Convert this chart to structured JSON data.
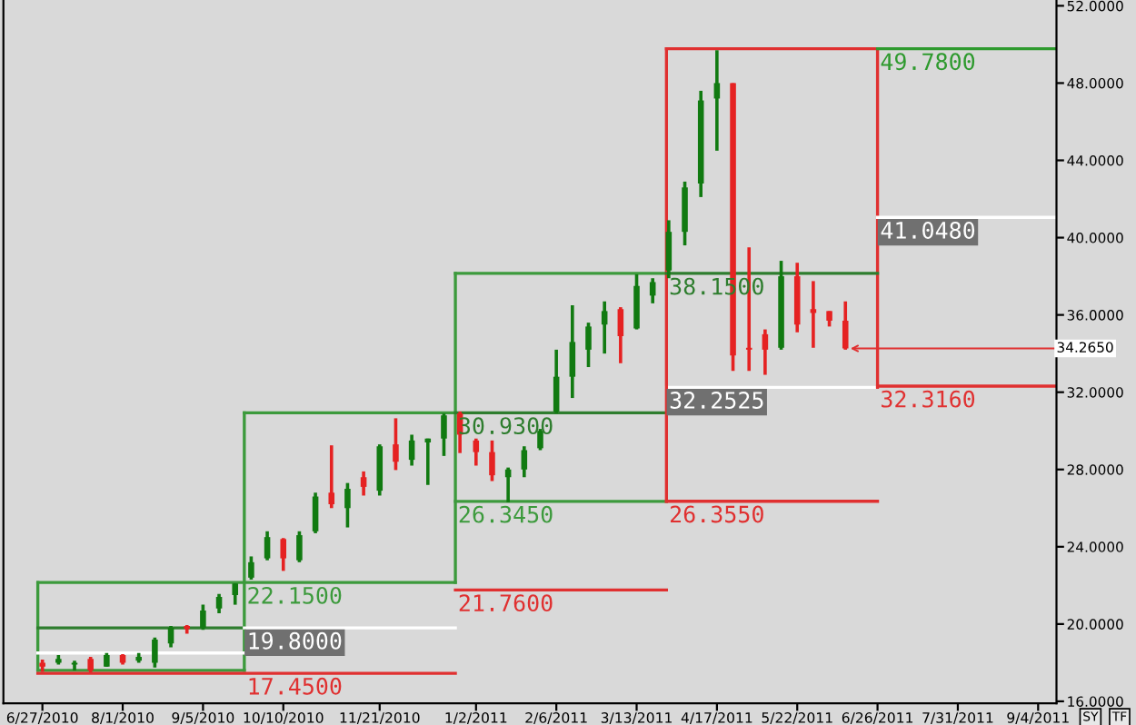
{
  "chart_data": {
    "type": "candlestick",
    "x": [
      "2010-06-27",
      "2010-07-04",
      "2010-07-11",
      "2010-07-18",
      "2010-07-25",
      "2010-08-01",
      "2010-08-08",
      "2010-08-15",
      "2010-08-22",
      "2010-08-29",
      "2010-09-05",
      "2010-09-12",
      "2010-09-19",
      "2010-09-26",
      "2010-10-03",
      "2010-10-10",
      "2010-10-17",
      "2010-10-24",
      "2010-10-31",
      "2010-11-07",
      "2010-11-14",
      "2010-11-21",
      "2010-11-28",
      "2010-12-05",
      "2010-12-12",
      "2010-12-19",
      "2010-12-26",
      "2011-01-02",
      "2011-01-09",
      "2011-01-16",
      "2011-01-23",
      "2011-01-30",
      "2011-02-06",
      "2011-02-13",
      "2011-02-20",
      "2011-02-27",
      "2011-03-06",
      "2011-03-13",
      "2011-03-20",
      "2011-03-27",
      "2011-04-03",
      "2011-04-10",
      "2011-04-17",
      "2011-04-24",
      "2011-05-01",
      "2011-05-08",
      "2011-05-15",
      "2011-05-22",
      "2011-05-29",
      "2011-06-05",
      "2011-06-12"
    ],
    "ohlc": [
      [
        18.0,
        18.16,
        17.53,
        17.8
      ],
      [
        18.0,
        18.4,
        17.9,
        18.2
      ],
      [
        17.9,
        18.1,
        17.6,
        18.0
      ],
      [
        18.2,
        18.3,
        17.5,
        17.6
      ],
      [
        17.8,
        18.5,
        17.8,
        18.4
      ],
      [
        18.4,
        18.44,
        17.9,
        18.0
      ],
      [
        18.1,
        18.5,
        18.0,
        18.3
      ],
      [
        18.0,
        19.3,
        17.75,
        19.2
      ],
      [
        19.0,
        19.9,
        18.8,
        19.8
      ],
      [
        19.9,
        19.95,
        19.5,
        19.75
      ],
      [
        19.8,
        21.0,
        19.7,
        20.7
      ],
      [
        20.8,
        21.56,
        20.56,
        21.4
      ],
      [
        21.5,
        22.1,
        21.0,
        22.1
      ],
      [
        22.4,
        23.5,
        22.3,
        23.2
      ],
      [
        23.4,
        24.8,
        23.3,
        24.5
      ],
      [
        24.4,
        24.45,
        22.75,
        23.4
      ],
      [
        23.3,
        24.8,
        23.2,
        24.6
      ],
      [
        24.8,
        26.8,
        24.7,
        26.6
      ],
      [
        26.8,
        29.25,
        26.0,
        26.2
      ],
      [
        26.0,
        27.3,
        25.0,
        27.0
      ],
      [
        27.6,
        27.9,
        26.65,
        27.1
      ],
      [
        26.9,
        29.3,
        26.65,
        29.2
      ],
      [
        29.3,
        30.65,
        27.97,
        28.4
      ],
      [
        28.5,
        29.8,
        28.2,
        29.5
      ],
      [
        29.4,
        29.6,
        27.2,
        29.6
      ],
      [
        29.6,
        30.9,
        28.7,
        30.8
      ],
      [
        30.9,
        31.0,
        28.85,
        29.8
      ],
      [
        29.5,
        29.6,
        28.2,
        28.9
      ],
      [
        28.9,
        29.5,
        27.4,
        27.7
      ],
      [
        27.6,
        28.1,
        26.3,
        28.0
      ],
      [
        28.0,
        29.2,
        27.6,
        29.0
      ],
      [
        29.1,
        30.1,
        29.0,
        30.0
      ],
      [
        31.0,
        34.2,
        30.9,
        32.8
      ],
      [
        32.8,
        36.5,
        31.7,
        34.6
      ],
      [
        34.2,
        35.6,
        33.3,
        35.4
      ],
      [
        35.5,
        36.7,
        34.0,
        36.2
      ],
      [
        36.3,
        36.4,
        33.5,
        34.9
      ],
      [
        35.3,
        38.1,
        35.25,
        37.5
      ],
      [
        37.0,
        37.9,
        36.6,
        37.7
      ],
      [
        38.3,
        40.9,
        37.9,
        40.3
      ],
      [
        40.3,
        42.9,
        39.6,
        42.6
      ],
      [
        42.8,
        47.6,
        42.1,
        47.1
      ],
      [
        47.2,
        49.7,
        44.5,
        48.0
      ],
      [
        48.0,
        48.0,
        33.1,
        33.9
      ],
      [
        34.3,
        39.5,
        33.1,
        34.2
      ],
      [
        35.0,
        35.25,
        32.9,
        34.2
      ],
      [
        34.3,
        38.8,
        34.2,
        38.0
      ],
      [
        38.0,
        38.7,
        35.1,
        35.5
      ],
      [
        36.3,
        37.75,
        34.3,
        36.1
      ],
      [
        36.2,
        36.2,
        35.4,
        35.7
      ],
      [
        35.7,
        36.7,
        34.2,
        34.265
      ]
    ],
    "colors": [
      "#e52222",
      "#117a11",
      "#117a11",
      "#e52222",
      "#117a11",
      "#e52222",
      "#117a11",
      "#117a11",
      "#117a11",
      "#e52222",
      "#117a11",
      "#117a11",
      "#117a11",
      "#117a11",
      "#117a11",
      "#e52222",
      "#117a11",
      "#117a11",
      "#e52222",
      "#117a11",
      "#e52222",
      "#117a11",
      "#e52222",
      "#117a11",
      "#117a11",
      "#117a11",
      "#e52222",
      "#e52222",
      "#e52222",
      "#117a11",
      "#117a11",
      "#117a11",
      "#117a11",
      "#117a11",
      "#117a11",
      "#117a11",
      "#e52222",
      "#117a11",
      "#117a11",
      "#117a11",
      "#117a11",
      "#117a11",
      "#117a11",
      "#e52222",
      "#e52222",
      "#e52222",
      "#117a11",
      "#e52222",
      "#e52222",
      "#e52222",
      "#e52222"
    ],
    "series": [
      {
        "type": "line",
        "x": [
          "2010-06-25",
          "2010-12-24"
        ],
        "values": [
          22.15,
          22.15
        ],
        "color": "#3c9a3c"
      },
      {
        "type": "line",
        "x": [
          "2010-06-25",
          "2010-09-23"
        ],
        "values": [
          17.6,
          17.6
        ],
        "color": "#3c9a3c"
      },
      {
        "type": "line",
        "x": [
          "2010-06-25",
          "2010-06-25"
        ],
        "values": [
          17.6,
          22.15
        ],
        "color": "#3c9a3c"
      },
      {
        "type": "line",
        "x": [
          "2010-09-23",
          "2010-09-23"
        ],
        "values": [
          17.6,
          30.93
        ],
        "color": "#3c9a3c"
      },
      {
        "type": "line",
        "x": [
          "2010-06-25",
          "2010-09-23"
        ],
        "values": [
          19.8,
          19.8
        ],
        "color": "#2e7d2e"
      },
      {
        "type": "line",
        "x": [
          "2010-09-23",
          "2010-12-24"
        ],
        "values": [
          19.8,
          19.8
        ],
        "color": "#ffffff"
      },
      {
        "type": "line",
        "x": [
          "2010-06-25",
          "2010-09-23"
        ],
        "values": [
          18.5,
          18.5
        ],
        "color": "#ffffff"
      },
      {
        "type": "line",
        "x": [
          "2010-06-25",
          "2010-12-24"
        ],
        "values": [
          17.45,
          17.45
        ],
        "color": "#e03030"
      },
      {
        "type": "line",
        "x": [
          "2010-09-23",
          "2010-12-24"
        ],
        "values": [
          30.93,
          30.93
        ],
        "color": "#3c9a3c"
      },
      {
        "type": "line",
        "x": [
          "2010-12-24",
          "2010-12-24"
        ],
        "values": [
          22.15,
          38.15
        ],
        "color": "#3c9a3c"
      },
      {
        "type": "line",
        "x": [
          "2010-12-24",
          "2011-03-26"
        ],
        "values": [
          21.76,
          21.76
        ],
        "color": "#e03030"
      },
      {
        "type": "line",
        "x": [
          "2010-12-24",
          "2011-03-26"
        ],
        "values": [
          38.15,
          38.15
        ],
        "color": "#3c9a3c"
      },
      {
        "type": "line",
        "x": [
          "2010-12-24",
          "2011-03-26"
        ],
        "values": [
          26.345,
          26.345
        ],
        "color": "#3c9a3c"
      },
      {
        "type": "line",
        "x": [
          "2010-12-24",
          "2011-03-26"
        ],
        "values": [
          30.93,
          30.93
        ],
        "color": "#2e7d2e"
      },
      {
        "type": "line",
        "x": [
          "2011-03-26",
          "2011-06-26"
        ],
        "values": [
          26.355,
          26.355
        ],
        "color": "#e03030"
      },
      {
        "type": "line",
        "x": [
          "2011-03-26",
          "2011-06-26"
        ],
        "values": [
          49.78,
          49.78
        ],
        "color": "#e03030"
      },
      {
        "type": "line",
        "x": [
          "2011-03-26",
          "2011-06-26"
        ],
        "values": [
          32.2525,
          32.2525
        ],
        "color": "#ffffff"
      },
      {
        "type": "line",
        "x": [
          "2011-03-26",
          "2011-03-26"
        ],
        "values": [
          26.345,
          49.78
        ],
        "color": "#e03030"
      },
      {
        "type": "line",
        "x": [
          "2011-06-26",
          "2011-06-26"
        ],
        "values": [
          32.2525,
          49.78
        ],
        "color": "#e03030"
      },
      {
        "type": "line",
        "x": [
          "2011-03-26",
          "2011-06-26"
        ],
        "values": [
          38.15,
          38.15
        ],
        "color": "#2e7d2e"
      },
      {
        "type": "line",
        "x": [
          "2011-06-26",
          "2011-09-12"
        ],
        "values": [
          49.78,
          49.78
        ],
        "color": "#2e9a2e"
      },
      {
        "type": "line",
        "x": [
          "2011-06-26",
          "2011-09-12"
        ],
        "values": [
          41.048,
          41.048
        ],
        "color": "#ffffff"
      },
      {
        "type": "line",
        "x": [
          "2011-06-26",
          "2011-09-12"
        ],
        "values": [
          32.316,
          32.316
        ],
        "color": "#e03030"
      }
    ],
    "annotations": [
      {
        "text": "22.1500",
        "x": "2010-09-23",
        "y": 22.15
      },
      {
        "text": "19.8000",
        "x": "2010-09-23",
        "y": 19.8
      },
      {
        "text": "17.4500",
        "x": "2010-09-23",
        "y": 17.45
      },
      {
        "text": "21.7600",
        "x": "2010-12-24",
        "y": 21.76
      },
      {
        "text": "30.9300",
        "x": "2010-12-24",
        "y": 30.93
      },
      {
        "text": "26.3450",
        "x": "2010-12-24",
        "y": 26.345
      },
      {
        "text": "26.3550",
        "x": "2011-03-26",
        "y": 26.355
      },
      {
        "text": "38.1500",
        "x": "2011-03-26",
        "y": 38.15
      },
      {
        "text": "32.2525",
        "x": "2011-03-26",
        "y": 32.2525
      },
      {
        "text": "49.7800",
        "x": "2011-06-26",
        "y": 49.78
      },
      {
        "text": "41.0480",
        "x": "2011-06-26",
        "y": 41.048
      },
      {
        "text": "32.3160",
        "x": "2011-06-26",
        "y": 32.316
      },
      {
        "text": "34.2650",
        "x": "2011-06-12",
        "y": 34.265
      },
      "SY",
      "TF"
    ],
    "xlim": [
      "2010-06-10",
      "2011-09-12"
    ],
    "xticks": [
      {
        "value": "2010-06-27",
        "label": "6/27/2010"
      },
      {
        "value": "2010-08-01",
        "label": "8/1/2010"
      },
      {
        "value": "2010-09-05",
        "label": "9/5/2010"
      },
      {
        "value": "2010-10-10",
        "label": "10/10/2010"
      },
      {
        "value": "2010-11-21",
        "label": "11/21/2010"
      },
      {
        "value": "2011-01-02",
        "label": "1/2/2011"
      },
      {
        "value": "2011-02-06",
        "label": "2/6/2011"
      },
      {
        "value": "2011-03-13",
        "label": "3/13/2011"
      },
      {
        "value": "2011-04-17",
        "label": "4/17/2011"
      },
      {
        "value": "2011-05-22",
        "label": "5/22/2011"
      },
      {
        "value": "2011-06-26",
        "label": "6/26/2011"
      },
      {
        "value": "2011-07-31",
        "label": "7/31/2011"
      },
      {
        "value": "2011-09-04",
        "label": "9/4/2011"
      }
    ],
    "ylim": [
      15.9,
      52.3
    ],
    "yticks": [
      {
        "value": 16,
        "label": "16.0000"
      },
      {
        "value": 20,
        "label": "20.0000"
      },
      {
        "value": 24,
        "label": "24.0000"
      },
      {
        "value": 28,
        "label": "28.0000"
      },
      {
        "value": 32,
        "label": "32.0000"
      },
      {
        "value": 36,
        "label": "36.0000"
      },
      {
        "value": 40,
        "label": "40.0000"
      },
      {
        "value": 44,
        "label": "44.0000"
      },
      {
        "value": 48,
        "label": "48.0000"
      },
      {
        "value": 52,
        "label": "52.0000"
      }
    ]
  }
}
